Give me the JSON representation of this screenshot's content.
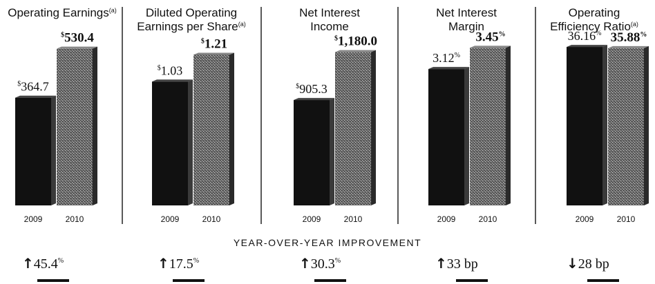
{
  "chart_data": [
    {
      "type": "bar",
      "title": "Operating Earnings",
      "title_footnote": "(a)",
      "categories": [
        "2009",
        "2010"
      ],
      "values": [
        364.7,
        530.4
      ],
      "value_labels": [
        "364.7",
        "530.4"
      ],
      "value_prefix": "$",
      "value_suffix": "",
      "yoy_direction": "up",
      "yoy_value": "45.4",
      "yoy_suffix": "%"
    },
    {
      "type": "bar",
      "title": "Diluted Operating Earnings per Share",
      "title_footnote": "(a)",
      "categories": [
        "2009",
        "2010"
      ],
      "values": [
        1.03,
        1.21
      ],
      "value_labels": [
        "1.03",
        "1.21"
      ],
      "value_prefix": "$",
      "value_suffix": "",
      "yoy_direction": "up",
      "yoy_value": "17.5",
      "yoy_suffix": "%"
    },
    {
      "type": "bar",
      "title": "Net Interest Income",
      "title_footnote": "",
      "categories": [
        "2009",
        "2010"
      ],
      "values": [
        905.3,
        1180.0
      ],
      "value_labels": [
        "905.3",
        "1,180.0"
      ],
      "value_prefix": "$",
      "value_suffix": "",
      "yoy_direction": "up",
      "yoy_value": "30.3",
      "yoy_suffix": "%"
    },
    {
      "type": "bar",
      "title": "Net Interest Margin",
      "title_footnote": "",
      "categories": [
        "2009",
        "2010"
      ],
      "values": [
        3.12,
        3.45
      ],
      "value_labels": [
        "3.12",
        "3.45"
      ],
      "value_prefix": "",
      "value_suffix": "%",
      "yoy_direction": "up",
      "yoy_value": "33 bp",
      "yoy_suffix": ""
    },
    {
      "type": "bar",
      "title": "Operating Efficiency Ratio",
      "title_footnote": "(a)",
      "categories": [
        "2009",
        "2010"
      ],
      "values": [
        36.16,
        35.88
      ],
      "value_labels": [
        "36.16",
        "35.88"
      ],
      "value_prefix": "",
      "value_suffix": "%",
      "yoy_direction": "down",
      "yoy_value": "28 bp",
      "yoy_suffix": ""
    }
  ],
  "yoy_header": "YEAR-OVER-YEAR IMPROVEMENT",
  "icons": {
    "up": "arrow-up-icon",
    "down": "arrow-down-icon"
  },
  "colors": {
    "bar_2009": "#111111",
    "bar_2010": "#555555",
    "text": "#111111"
  }
}
